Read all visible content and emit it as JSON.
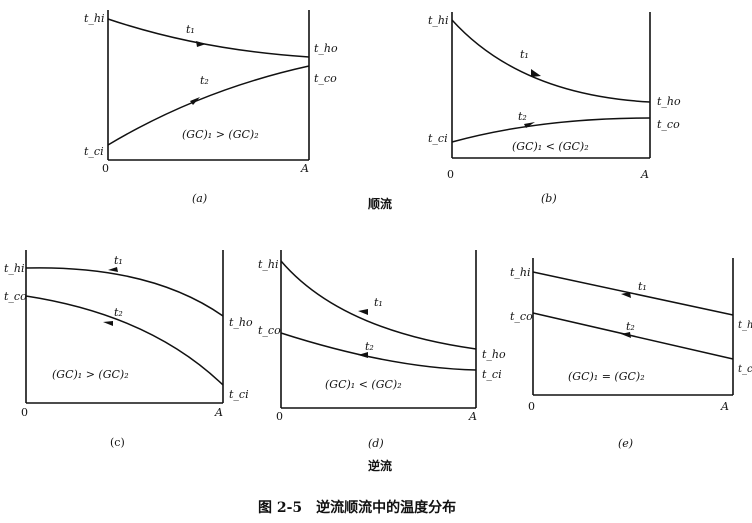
{
  "figure_title": "图 2-5　逆流顺流中的温度分布",
  "group_labels": {
    "parallel": "顺流",
    "counter": "逆流"
  },
  "panels": [
    {
      "id": "a",
      "caption": "(a)",
      "relation": "(GC)₁ > (GC)₂",
      "labels": {
        "origin": "0",
        "end": "A",
        "t1": "t₁",
        "t2": "t₂",
        "left_top": "t_hi",
        "left_bottom": "t_ci",
        "right_top": "t_ho",
        "right_bottom": "t_co"
      }
    },
    {
      "id": "b",
      "caption": "(b)",
      "relation": "(GC)₁ < (GC)₂",
      "labels": {
        "origin": "0",
        "end": "A",
        "t1": "t₁",
        "t2": "t₂",
        "left_top": "t_hi",
        "left_bottom": "t_ci",
        "right_top": "t_ho",
        "right_bottom": "t_co"
      }
    },
    {
      "id": "c",
      "caption": "(c)",
      "relation": "(GC)₁ > (GC)₂",
      "labels": {
        "origin": "0",
        "end": "A",
        "t1": "t₁",
        "t2": "t₂",
        "left_top": "t_hi",
        "left_bottom": "t_co",
        "right_top": "t_ho",
        "right_bottom": "t_ci"
      }
    },
    {
      "id": "d",
      "caption": "(d)",
      "relation": "(GC)₁ < (GC)₂",
      "labels": {
        "origin": "0",
        "end": "A",
        "t1": "t₁",
        "t2": "t₂",
        "left_top": "t_hi",
        "left_bottom": "t_co",
        "right_top": "t_ho",
        "right_bottom": "t_ci"
      }
    },
    {
      "id": "e",
      "caption": "(e)",
      "relation": "(GC)₁ = (GC)₂",
      "labels": {
        "origin": "0",
        "end": "A",
        "t1": "t₁",
        "t2": "t₂",
        "left_top": "t_hi",
        "left_bottom": "t_co",
        "right_top": "t_ho",
        "right_bottom": "t_ci"
      }
    }
  ]
}
